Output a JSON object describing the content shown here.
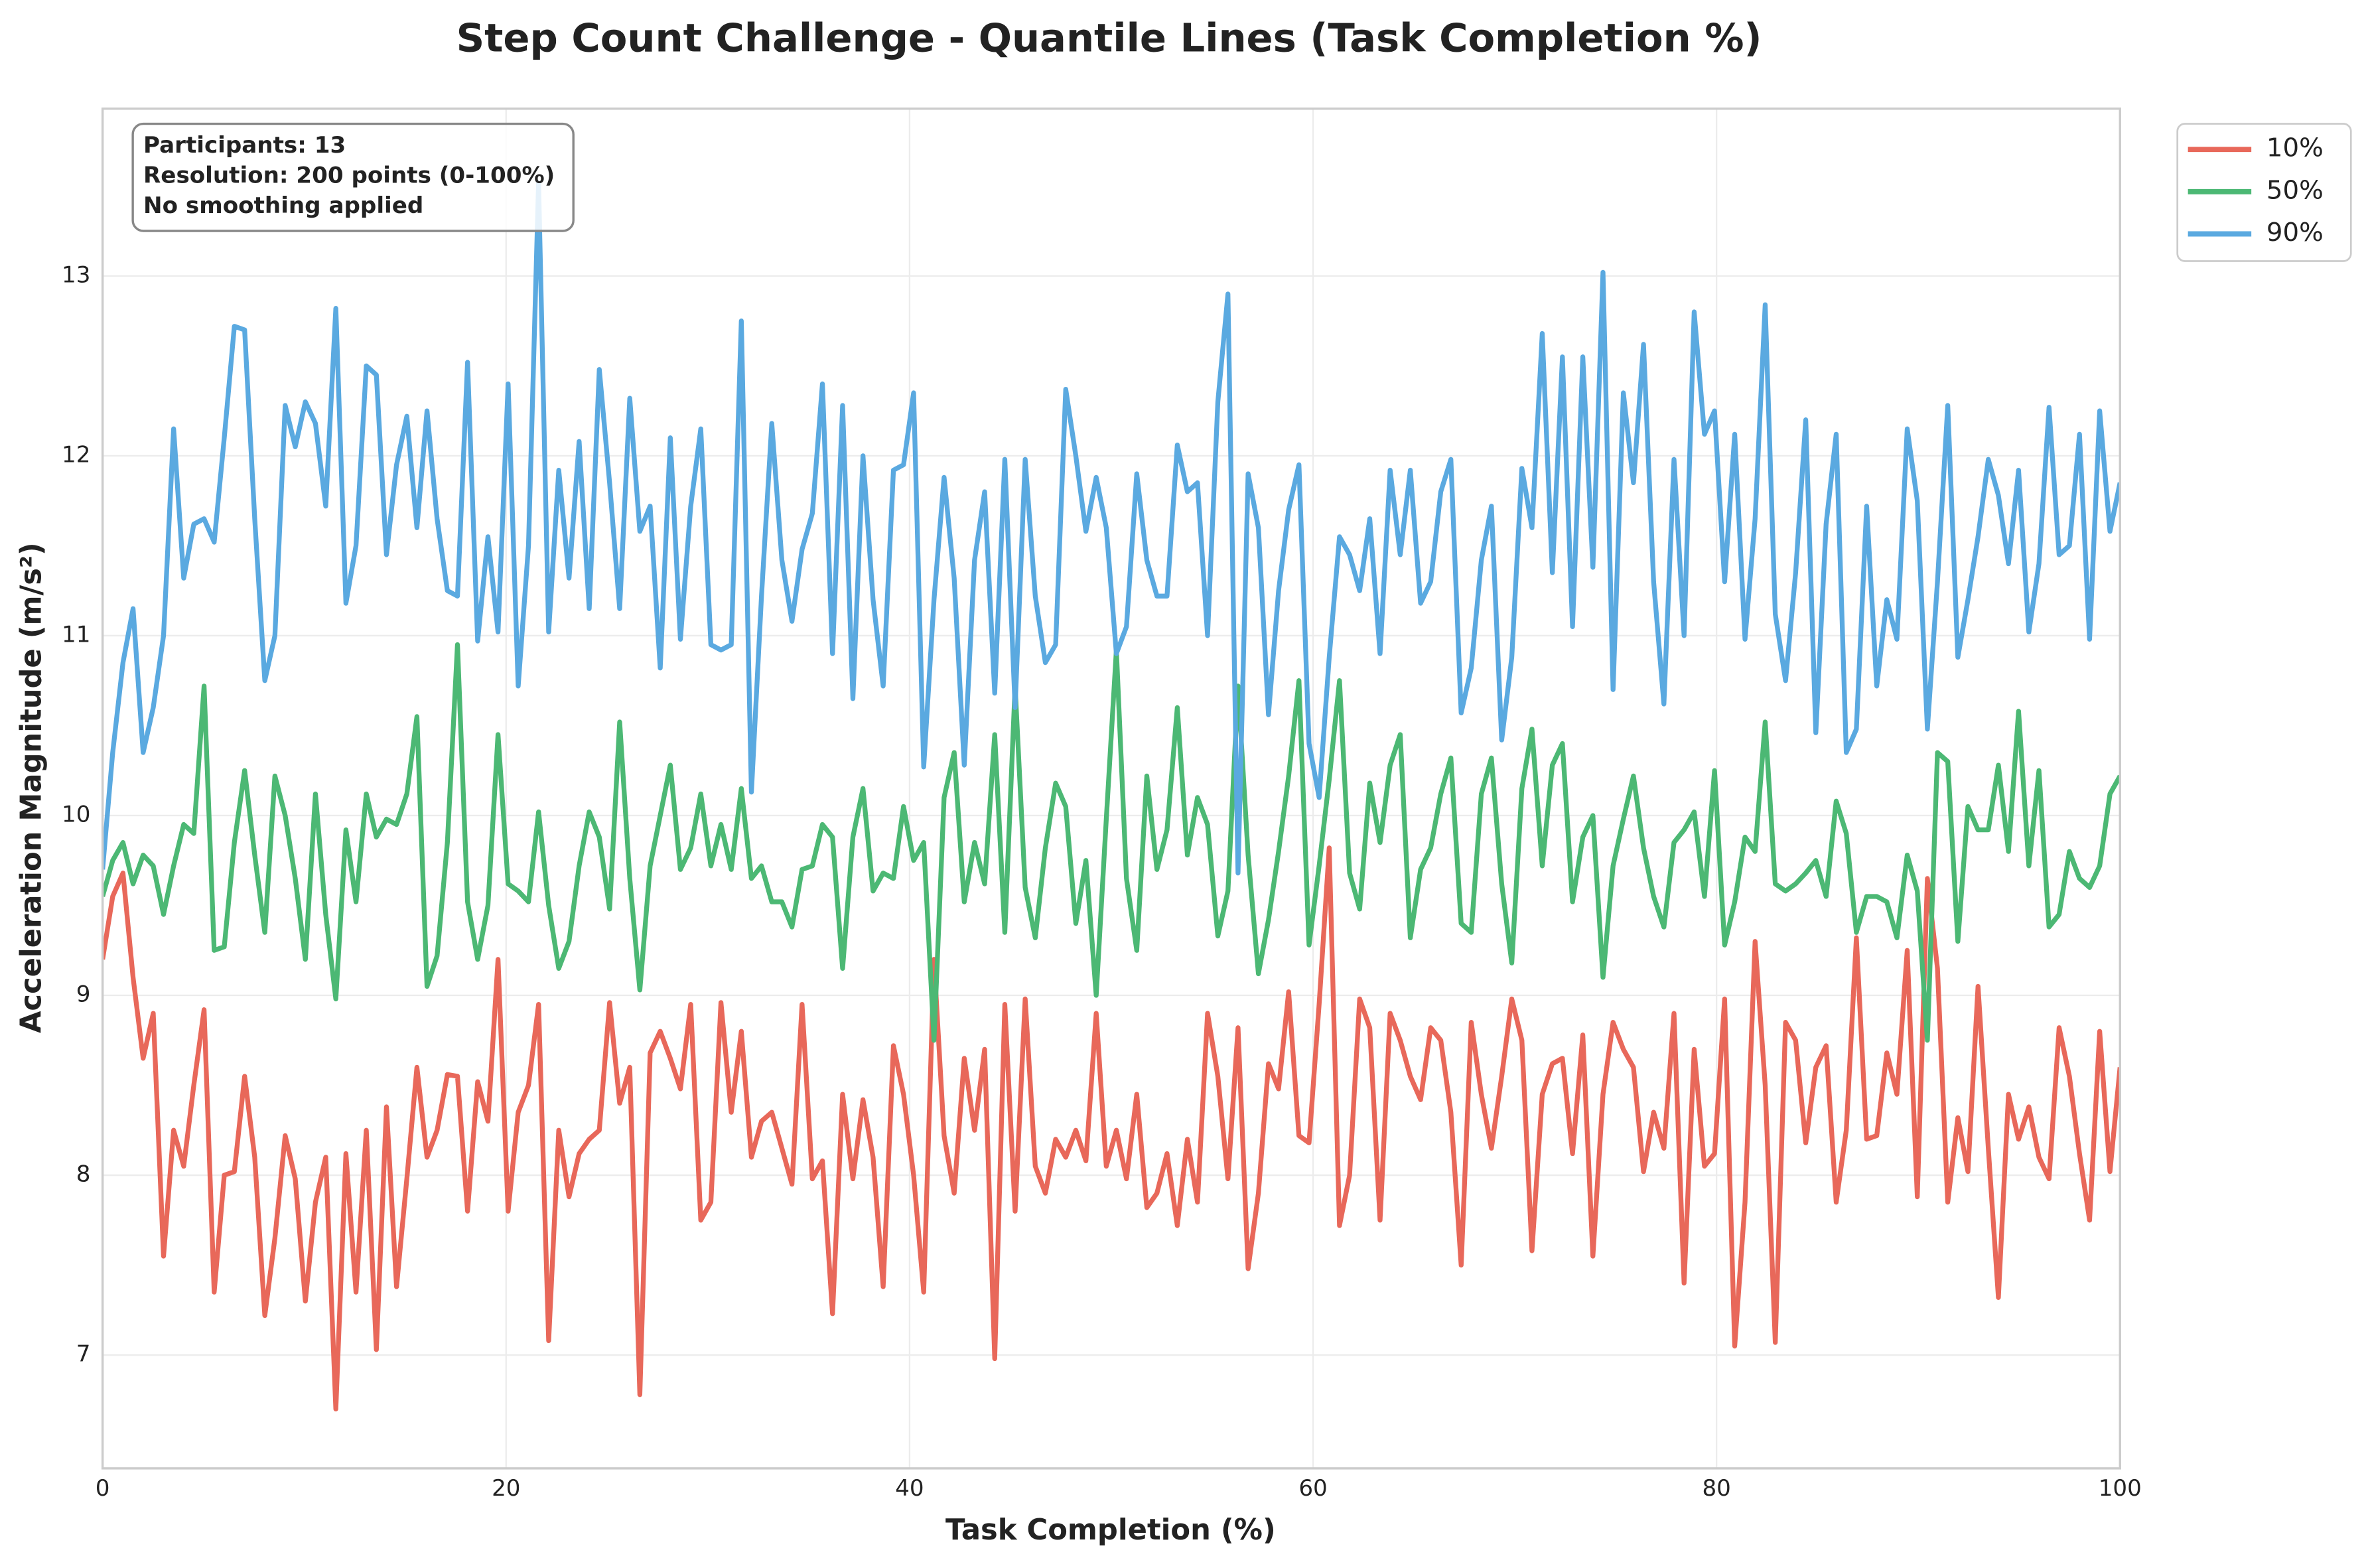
{
  "chart_data": {
    "type": "line",
    "title": "Step Count Challenge - Quantile Lines (Task Completion %)",
    "x_label": "Task Completion (%)",
    "y_label": "Acceleration Magnitude (m/s²)",
    "annotation_lines": [
      "Participants: 13",
      "Resolution: 200 points (0-100%)",
      "No smoothing applied"
    ],
    "xlim": [
      0,
      100
    ],
    "xticks": [
      0,
      20,
      40,
      60,
      80,
      100
    ],
    "ylim": [
      6.37,
      13.93
    ],
    "yticks": [
      7,
      8,
      9,
      10,
      11,
      12,
      13
    ],
    "grid": true,
    "legend": "outside upper right",
    "x": [
      0,
      0.5,
      1.01,
      1.51,
      2.01,
      2.51,
      3.02,
      3.52,
      4.02,
      4.52,
      5.03,
      5.53,
      6.03,
      6.53,
      7.04,
      7.54,
      8.04,
      8.54,
      9.05,
      9.55,
      10.05,
      10.55,
      11.06,
      11.56,
      12.06,
      12.56,
      13.07,
      13.57,
      14.07,
      14.57,
      15.08,
      15.58,
      16.08,
      16.58,
      17.09,
      17.59,
      18.09,
      18.59,
      19.1,
      19.6,
      20.1,
      20.6,
      21.11,
      21.61,
      22.11,
      22.61,
      23.12,
      23.62,
      24.12,
      24.62,
      25.13,
      25.63,
      26.13,
      26.63,
      27.14,
      27.64,
      28.14,
      28.64,
      29.15,
      29.65,
      30.15,
      30.65,
      31.16,
      31.66,
      32.16,
      32.66,
      33.17,
      33.67,
      34.17,
      34.67,
      35.18,
      35.68,
      36.18,
      36.68,
      37.19,
      37.69,
      38.19,
      38.69,
      39.2,
      39.7,
      40.2,
      40.7,
      41.21,
      41.71,
      42.21,
      42.71,
      43.22,
      43.72,
      44.22,
      44.72,
      45.23,
      45.73,
      46.23,
      46.73,
      47.24,
      47.74,
      48.24,
      48.74,
      49.25,
      49.75,
      50.25,
      50.75,
      51.26,
      51.76,
      52.26,
      52.76,
      53.27,
      53.77,
      54.27,
      54.77,
      55.28,
      55.78,
      56.28,
      56.78,
      57.29,
      57.79,
      58.29,
      58.79,
      59.3,
      59.8,
      60.3,
      60.8,
      61.31,
      61.81,
      62.31,
      62.81,
      63.32,
      63.82,
      64.32,
      64.82,
      65.33,
      65.83,
      66.33,
      66.83,
      67.34,
      67.84,
      68.34,
      68.84,
      69.35,
      69.85,
      70.35,
      70.85,
      71.36,
      71.86,
      72.36,
      72.86,
      73.37,
      73.87,
      74.37,
      74.87,
      75.38,
      75.88,
      76.38,
      76.88,
      77.39,
      77.89,
      78.39,
      78.89,
      79.4,
      79.9,
      80.4,
      80.9,
      81.41,
      81.91,
      82.41,
      82.91,
      83.42,
      83.92,
      84.42,
      84.92,
      85.43,
      85.93,
      86.43,
      86.93,
      87.44,
      87.94,
      88.44,
      88.94,
      89.45,
      89.95,
      90.45,
      90.95,
      91.46,
      91.96,
      92.46,
      92.96,
      93.47,
      93.97,
      94.47,
      94.97,
      95.48,
      95.98,
      96.48,
      96.98,
      97.49,
      97.99,
      98.49,
      98.99,
      99.5,
      100
    ],
    "series": [
      {
        "name": "10%",
        "color": "#e8685a",
        "values": [
          9.2,
          9.55,
          9.68,
          9.1,
          8.65,
          8.9,
          7.55,
          8.25,
          8.05,
          8.5,
          8.92,
          7.35,
          8.0,
          8.02,
          8.55,
          8.1,
          7.22,
          7.65,
          8.22,
          7.98,
          7.3,
          7.85,
          8.1,
          6.7,
          8.12,
          7.35,
          8.25,
          7.03,
          8.38,
          7.38,
          7.98,
          8.6,
          8.1,
          8.25,
          8.56,
          8.55,
          7.8,
          8.52,
          8.3,
          9.2,
          7.8,
          8.35,
          8.5,
          8.95,
          7.08,
          8.25,
          7.88,
          8.12,
          8.2,
          8.25,
          8.96,
          8.4,
          8.6,
          6.78,
          8.68,
          8.8,
          8.65,
          8.48,
          8.95,
          7.75,
          7.85,
          8.96,
          8.35,
          8.8,
          8.1,
          8.3,
          8.35,
          8.15,
          7.95,
          8.95,
          7.98,
          8.08,
          7.23,
          8.45,
          7.98,
          8.42,
          8.1,
          7.38,
          8.72,
          8.45,
          8.0,
          7.35,
          9.2,
          8.22,
          7.9,
          8.65,
          8.25,
          8.7,
          6.98,
          8.95,
          7.8,
          8.98,
          8.05,
          7.9,
          8.2,
          8.1,
          8.25,
          8.08,
          8.9,
          8.05,
          8.25,
          7.98,
          8.45,
          7.82,
          7.9,
          8.12,
          7.72,
          8.2,
          7.85,
          8.9,
          8.55,
          7.98,
          8.82,
          7.48,
          7.9,
          8.62,
          8.48,
          9.02,
          8.22,
          8.18,
          8.95,
          9.82,
          7.72,
          8.0,
          8.98,
          8.82,
          7.75,
          8.9,
          8.75,
          8.55,
          8.42,
          8.82,
          8.75,
          8.35,
          7.5,
          8.85,
          8.45,
          8.15,
          8.55,
          8.98,
          8.75,
          7.58,
          8.45,
          8.62,
          8.65,
          8.12,
          8.78,
          7.55,
          8.45,
          8.85,
          8.7,
          8.6,
          8.02,
          8.35,
          8.15,
          8.9,
          7.4,
          8.7,
          8.05,
          8.12,
          8.98,
          7.05,
          7.85,
          9.3,
          8.5,
          7.07,
          8.85,
          8.75,
          8.18,
          8.6,
          8.72,
          7.85,
          8.25,
          9.32,
          8.2,
          8.22,
          8.68,
          8.45,
          9.25,
          7.88,
          9.65,
          9.15,
          7.85,
          8.32,
          8.02,
          9.05,
          8.15,
          7.32,
          8.45,
          8.2,
          8.38,
          8.1,
          7.98,
          8.82,
          8.55,
          8.12,
          7.75,
          8.8,
          8.02,
          8.6
        ]
      },
      {
        "name": "50%",
        "color": "#4cb874",
        "values": [
          9.55,
          9.75,
          9.85,
          9.62,
          9.78,
          9.72,
          9.45,
          9.72,
          9.95,
          9.9,
          10.72,
          9.25,
          9.27,
          9.85,
          10.25,
          9.78,
          9.35,
          10.22,
          10.0,
          9.65,
          9.2,
          10.12,
          9.45,
          8.98,
          9.92,
          9.52,
          10.12,
          9.88,
          9.98,
          9.95,
          10.12,
          10.55,
          9.05,
          9.22,
          9.85,
          10.95,
          9.52,
          9.2,
          9.5,
          10.45,
          9.62,
          9.58,
          9.52,
          10.02,
          9.5,
          9.15,
          9.3,
          9.72,
          10.02,
          9.88,
          9.48,
          10.52,
          9.65,
          9.03,
          9.72,
          10.0,
          10.28,
          9.7,
          9.82,
          10.12,
          9.72,
          9.95,
          9.7,
          10.15,
          9.65,
          9.72,
          9.52,
          9.52,
          9.38,
          9.7,
          9.72,
          9.95,
          9.88,
          9.15,
          9.88,
          10.15,
          9.58,
          9.68,
          9.65,
          10.05,
          9.75,
          9.85,
          8.75,
          10.1,
          10.35,
          9.52,
          9.85,
          9.62,
          10.45,
          9.35,
          10.72,
          9.6,
          9.32,
          9.82,
          10.18,
          10.05,
          9.4,
          9.75,
          9.0,
          9.98,
          10.92,
          9.65,
          9.25,
          10.22,
          9.7,
          9.92,
          10.6,
          9.78,
          10.1,
          9.95,
          9.33,
          9.58,
          10.72,
          9.78,
          9.12,
          9.42,
          9.8,
          10.22,
          10.75,
          9.28,
          9.72,
          10.2,
          10.75,
          9.68,
          9.48,
          10.18,
          9.85,
          10.28,
          10.45,
          9.32,
          9.7,
          9.82,
          10.12,
          10.32,
          9.4,
          9.35,
          10.12,
          10.32,
          9.62,
          9.18,
          10.15,
          10.48,
          9.72,
          10.28,
          10.4,
          9.52,
          9.88,
          10.0,
          9.1,
          9.72,
          9.98,
          10.22,
          9.82,
          9.55,
          9.38,
          9.85,
          9.92,
          10.02,
          9.55,
          10.25,
          9.28,
          9.52,
          9.88,
          9.8,
          10.52,
          9.62,
          9.58,
          9.62,
          9.68,
          9.75,
          9.55,
          10.08,
          9.9,
          9.35,
          9.55,
          9.55,
          9.52,
          9.32,
          9.78,
          9.58,
          8.75,
          10.35,
          10.3,
          9.3,
          10.05,
          9.92,
          9.92,
          10.28,
          9.8,
          10.58,
          9.72,
          10.25,
          9.38,
          9.45,
          9.8,
          9.65,
          9.6,
          9.72,
          10.12,
          10.22
        ]
      },
      {
        "name": "90%",
        "color": "#5aa9e0",
        "values": [
          9.7,
          10.35,
          10.85,
          11.15,
          10.35,
          10.6,
          11.0,
          12.15,
          11.32,
          11.62,
          11.65,
          11.52,
          12.1,
          12.72,
          12.7,
          11.65,
          10.75,
          11.0,
          12.28,
          12.05,
          12.3,
          12.18,
          11.72,
          12.82,
          11.18,
          11.5,
          12.5,
          12.45,
          11.45,
          11.95,
          12.22,
          11.6,
          12.25,
          11.65,
          11.25,
          11.22,
          12.52,
          10.97,
          11.55,
          11.02,
          12.4,
          10.72,
          11.5,
          13.52,
          11.02,
          11.92,
          11.32,
          12.08,
          11.15,
          12.48,
          11.85,
          11.15,
          12.32,
          11.58,
          11.72,
          10.82,
          12.1,
          10.98,
          11.72,
          12.15,
          10.95,
          10.92,
          10.95,
          12.75,
          10.13,
          11.22,
          12.18,
          11.42,
          11.08,
          11.48,
          11.68,
          12.4,
          10.9,
          12.28,
          10.65,
          12.0,
          11.2,
          10.72,
          11.92,
          11.95,
          12.35,
          10.27,
          11.2,
          11.88,
          11.32,
          10.28,
          11.42,
          11.8,
          10.68,
          11.98,
          10.6,
          11.98,
          11.22,
          10.85,
          10.95,
          12.37,
          12.0,
          11.58,
          11.88,
          11.6,
          10.9,
          11.05,
          11.9,
          11.42,
          11.22,
          11.22,
          12.06,
          11.8,
          11.85,
          11.0,
          12.3,
          12.9,
          9.68,
          11.9,
          11.6,
          10.56,
          11.25,
          11.7,
          11.95,
          10.4,
          10.1,
          10.88,
          11.55,
          11.45,
          11.25,
          11.65,
          10.9,
          11.92,
          11.45,
          11.92,
          11.18,
          11.3,
          11.8,
          11.98,
          10.57,
          10.82,
          11.42,
          11.72,
          10.42,
          10.88,
          11.93,
          11.6,
          12.68,
          11.35,
          12.55,
          11.05,
          12.55,
          11.38,
          13.02,
          10.7,
          12.35,
          11.85,
          12.62,
          11.3,
          10.62,
          11.98,
          11.0,
          12.8,
          12.12,
          12.25,
          11.3,
          12.12,
          10.98,
          11.65,
          12.84,
          11.12,
          10.75,
          11.35,
          12.2,
          10.46,
          11.62,
          12.12,
          10.35,
          10.48,
          11.72,
          10.72,
          11.2,
          10.98,
          12.15,
          11.75,
          10.48,
          11.3,
          12.28,
          10.88,
          11.2,
          11.55,
          11.98,
          11.78,
          11.4,
          11.92,
          11.02,
          11.4,
          12.27,
          11.45,
          11.5,
          12.12,
          10.98,
          12.25,
          11.58,
          11.85
        ]
      }
    ]
  }
}
